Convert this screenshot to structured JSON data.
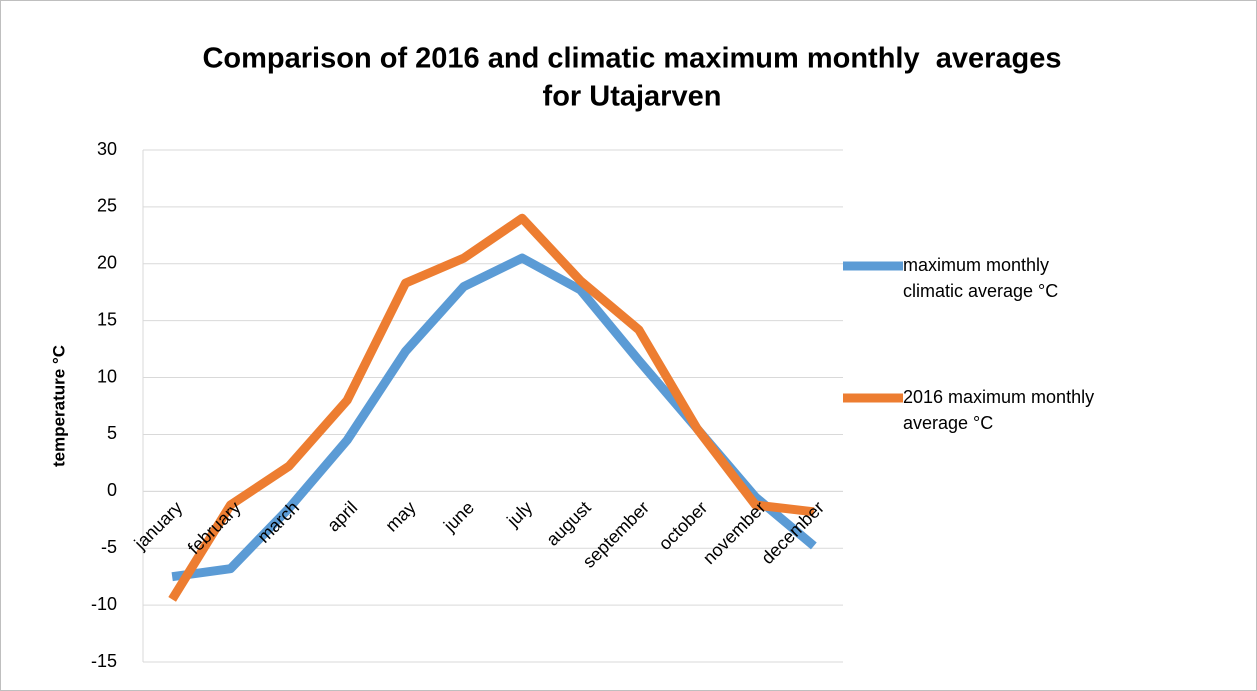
{
  "chart_data": {
    "type": "line",
    "title": [
      "Comparison of 2016 and climatic maximum monthly  averages",
      "for Utajarven"
    ],
    "y_label": "temperature °C",
    "categories": [
      "january",
      "february",
      "march",
      "april",
      "may",
      "june",
      "july",
      "august",
      "september",
      "october",
      "november",
      "december"
    ],
    "series": [
      {
        "name": "maximum monthly climatic average °C",
        "color": "#5b9bd5",
        "values": [
          -7.5,
          -6.8,
          -1.5,
          4.5,
          12.3,
          18,
          20.5,
          17.7,
          11.5,
          5.5,
          -0.5,
          -4.8
        ]
      },
      {
        "name": "2016 maximum monthly average °C",
        "color": "#ed7d31",
        "values": [
          -9.5,
          -1.2,
          2.2,
          8,
          18.3,
          20.5,
          24,
          18.5,
          14.2,
          5.5,
          -1.2,
          -1.8
        ]
      }
    ],
    "ylim": [
      -15,
      30
    ],
    "yticks": [
      -15,
      -10,
      -5,
      0,
      5,
      10,
      15,
      20,
      25,
      30
    ],
    "grid": true,
    "legend": "right"
  }
}
